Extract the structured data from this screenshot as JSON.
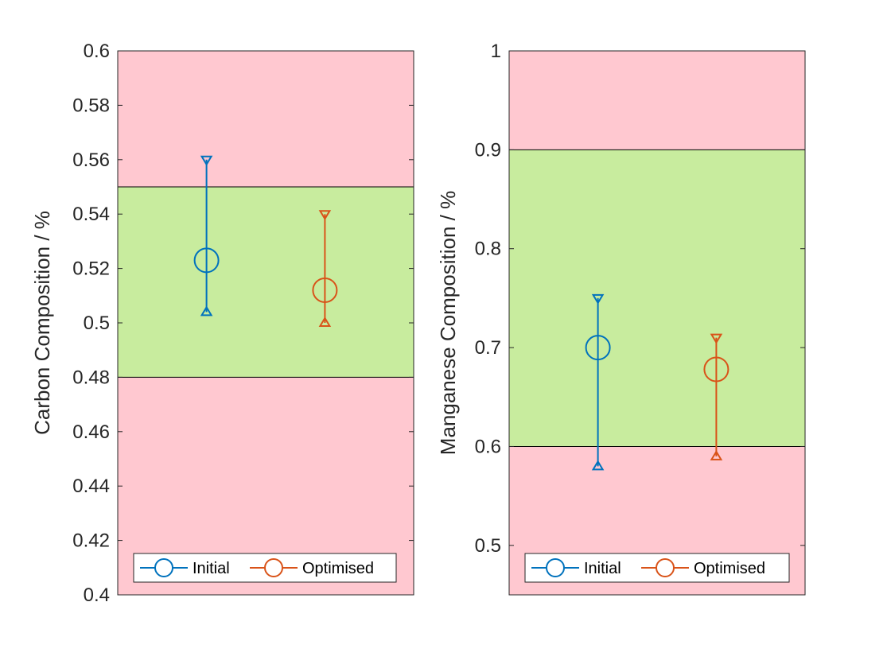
{
  "chart_data": [
    {
      "type": "scatter",
      "ylabel": "Carbon Composition / %",
      "ylim": [
        0.4,
        0.6
      ],
      "yticks": [
        0.4,
        0.42,
        0.44,
        0.46,
        0.48,
        0.5,
        0.52,
        0.54,
        0.56,
        0.58,
        0.6
      ],
      "ytick_labels": [
        "0.4",
        "0.42",
        "0.44",
        "0.46",
        "0.48",
        "0.5",
        "0.52",
        "0.54",
        "0.56",
        "0.58",
        "0.6"
      ],
      "grid": false,
      "bands": [
        {
          "from": 0.4,
          "to": 0.48,
          "color": "#ffc8d0"
        },
        {
          "from": 0.48,
          "to": 0.55,
          "color": "#c8ec9e"
        },
        {
          "from": 0.55,
          "to": 0.6,
          "color": "#ffc8d0"
        }
      ],
      "series": [
        {
          "name": "Initial",
          "color": "#0072bd",
          "x": 1,
          "y": 0.523,
          "lower": 0.504,
          "upper": 0.56
        },
        {
          "name": "Optimised",
          "color": "#d95319",
          "x": 2,
          "y": 0.512,
          "lower": 0.5,
          "upper": 0.54
        }
      ],
      "xlim": [
        0.25,
        2.75
      ],
      "legend_position": "bottom"
    },
    {
      "type": "scatter",
      "ylabel": "Manganese Composition / %",
      "ylim": [
        0.45,
        1.0
      ],
      "yticks": [
        0.5,
        0.6,
        0.7,
        0.8,
        0.9,
        1.0
      ],
      "ytick_labels": [
        "0.5",
        "0.6",
        "0.7",
        "0.8",
        "0.9",
        "1"
      ],
      "grid": false,
      "bands": [
        {
          "from": 0.45,
          "to": 0.6,
          "color": "#ffc8d0"
        },
        {
          "from": 0.6,
          "to": 0.9,
          "color": "#c8ec9e"
        },
        {
          "from": 0.9,
          "to": 1.0,
          "color": "#ffc8d0"
        }
      ],
      "series": [
        {
          "name": "Initial",
          "color": "#0072bd",
          "x": 1,
          "y": 0.7,
          "lower": 0.58,
          "upper": 0.75
        },
        {
          "name": "Optimised",
          "color": "#d95319",
          "x": 2,
          "y": 0.678,
          "lower": 0.59,
          "upper": 0.71
        }
      ],
      "xlim": [
        0.25,
        2.75
      ],
      "legend_position": "bottom"
    }
  ]
}
